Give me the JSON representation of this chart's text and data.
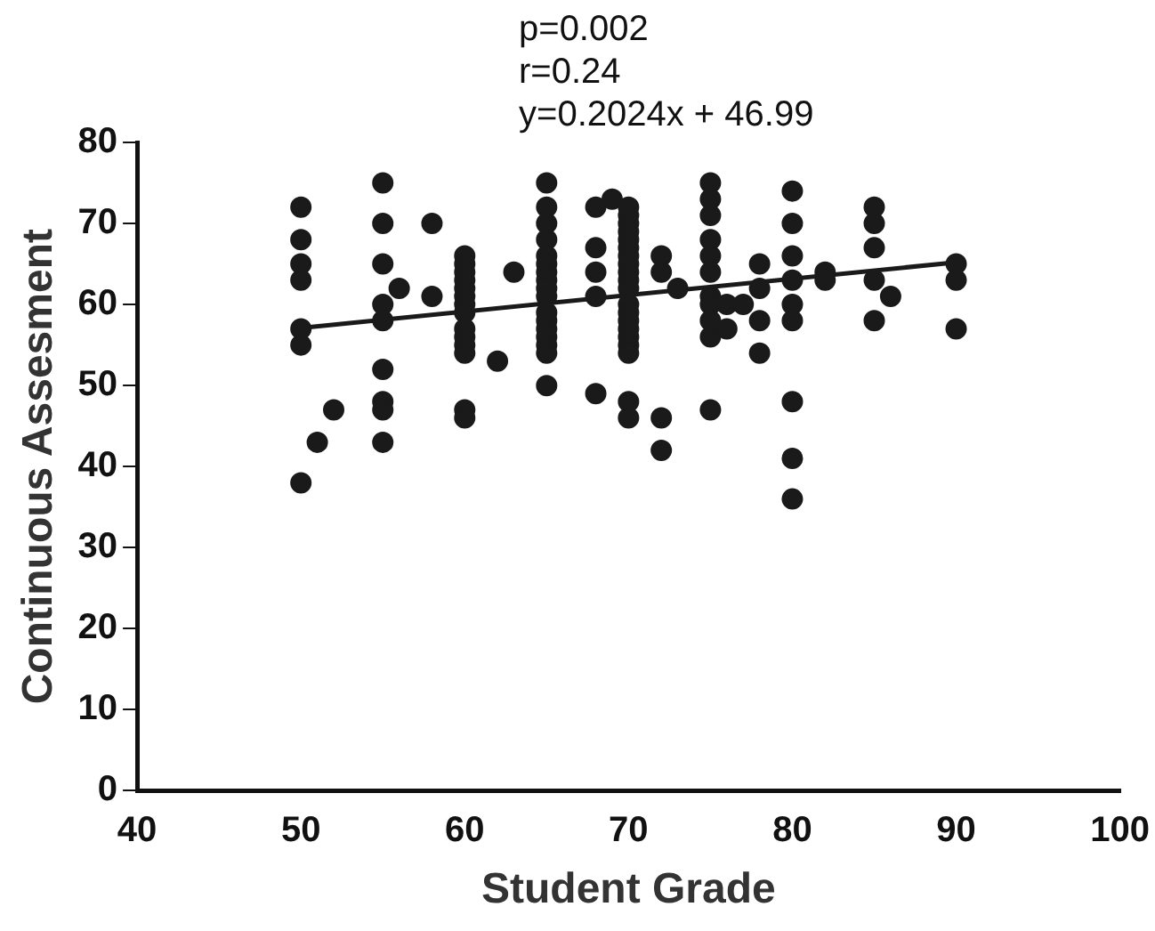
{
  "chart_data": {
    "type": "scatter",
    "xlabel": "Student Grade",
    "ylabel": "Continuous Assesment",
    "annotations": [
      "p=0.002",
      "r=0.24",
      "y=0.2024x + 46.99"
    ],
    "xlim": [
      40,
      100
    ],
    "xticks": [
      40,
      50,
      60,
      70,
      80,
      90,
      100
    ],
    "ylim": [
      0,
      80
    ],
    "yticks": [
      0,
      10,
      20,
      30,
      40,
      50,
      60,
      70,
      80
    ],
    "grid": false,
    "legend": false,
    "series": [
      {
        "marker": "circle",
        "color": "#1a1a1a",
        "x": [
          50,
          50,
          50,
          50,
          50,
          50,
          50,
          51,
          52,
          55,
          55,
          55,
          55,
          55,
          55,
          55,
          55,
          55,
          56,
          58,
          58,
          60,
          60,
          60,
          60,
          60,
          60,
          60,
          60,
          60,
          60,
          60,
          60,
          60,
          60,
          62,
          63,
          65,
          65,
          65,
          65,
          65,
          65,
          65,
          65,
          65,
          65,
          65,
          65,
          65,
          65,
          65,
          65,
          65,
          68,
          68,
          68,
          68,
          68,
          69,
          70,
          70,
          70,
          70,
          70,
          70,
          70,
          70,
          70,
          70,
          70,
          70,
          70,
          70,
          70,
          70,
          70,
          70,
          70,
          70,
          72,
          72,
          72,
          72,
          73,
          75,
          75,
          75,
          75,
          75,
          75,
          75,
          75,
          75,
          75,
          75,
          76,
          76,
          77,
          78,
          78,
          78,
          78,
          80,
          80,
          80,
          80,
          80,
          80,
          80,
          80,
          80,
          82,
          82,
          85,
          85,
          85,
          85,
          85,
          86,
          90,
          90,
          90
        ],
        "values": [
          72,
          68,
          65,
          63,
          57,
          55,
          38,
          43,
          47,
          75,
          70,
          65,
          60,
          58,
          52,
          48,
          47,
          43,
          62,
          70,
          61,
          66,
          65,
          64,
          63,
          62,
          61,
          60,
          59,
          57,
          56,
          55,
          54,
          47,
          46,
          53,
          64,
          75,
          72,
          70,
          68,
          66,
          65,
          64,
          63,
          62,
          61,
          59,
          58,
          57,
          56,
          55,
          54,
          50,
          72,
          67,
          64,
          61,
          49,
          73,
          72,
          71,
          70,
          69,
          68,
          67,
          66,
          65,
          64,
          63,
          62,
          60,
          59,
          58,
          57,
          56,
          55,
          54,
          48,
          46,
          66,
          64,
          46,
          42,
          62,
          75,
          73,
          71,
          68,
          66,
          64,
          61,
          60,
          58,
          56,
          47,
          60,
          57,
          60,
          65,
          62,
          58,
          54,
          74,
          70,
          66,
          63,
          60,
          58,
          48,
          41,
          36,
          64,
          63,
          72,
          70,
          67,
          63,
          58,
          61,
          65,
          63,
          57
        ]
      },
      {
        "type": "line",
        "marker": "none",
        "color": "#1a1a1a",
        "x": [
          50,
          90
        ],
        "values": [
          57.1,
          65.2
        ]
      }
    ]
  }
}
